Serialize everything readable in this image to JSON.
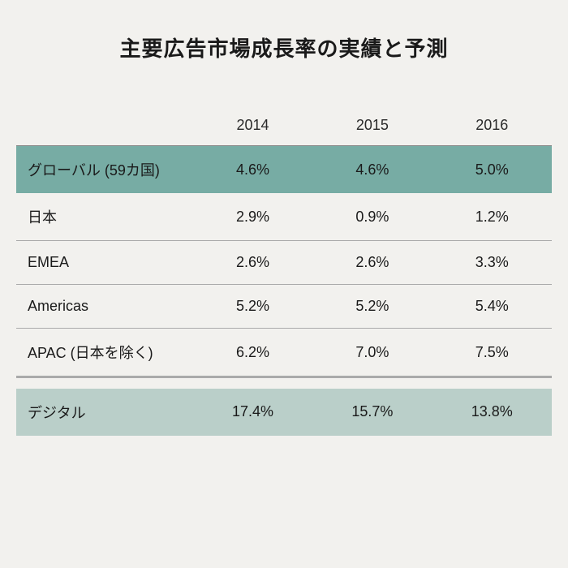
{
  "type": "table",
  "title": "主要広告市場成長率の実績と予測",
  "background_color": "#f2f1ee",
  "text_color": "#1a1a1a",
  "title_fontsize": 26,
  "body_fontsize": 18,
  "columns": [
    "2014",
    "2015",
    "2016"
  ],
  "column_widths_pct": [
    33,
    22.33,
    22.33,
    22.33
  ],
  "divider_color": "#aaaaaa",
  "header_border_color": "#888888",
  "highlight_dark_bg": "#77aca4",
  "highlight_light_bg": "#bacfc9",
  "rows": [
    {
      "label": "グローバル (59カ国)",
      "values": [
        "4.6%",
        "4.6%",
        "5.0%"
      ],
      "style": "highlight_dark",
      "divider": false
    },
    {
      "label": "日本",
      "values": [
        "2.9%",
        "0.9%",
        "1.2%"
      ],
      "style": "plain",
      "divider": true
    },
    {
      "label": "EMEA",
      "values": [
        "2.6%",
        "2.6%",
        "3.3%"
      ],
      "style": "plain",
      "divider": true
    },
    {
      "label": "Americas",
      "values": [
        "5.2%",
        "5.2%",
        "5.4%"
      ],
      "style": "plain",
      "divider": true
    },
    {
      "label": "APAC (日本を除く)",
      "values": [
        "6.2%",
        "7.0%",
        "7.5%"
      ],
      "style": "plain",
      "divider": false
    }
  ],
  "gap_row": {
    "style": "spacer",
    "border_top": true
  },
  "footer_row": {
    "label": "デジタル",
    "values": [
      "17.4%",
      "15.7%",
      "13.8%"
    ],
    "style": "highlight_light",
    "divider": false
  }
}
